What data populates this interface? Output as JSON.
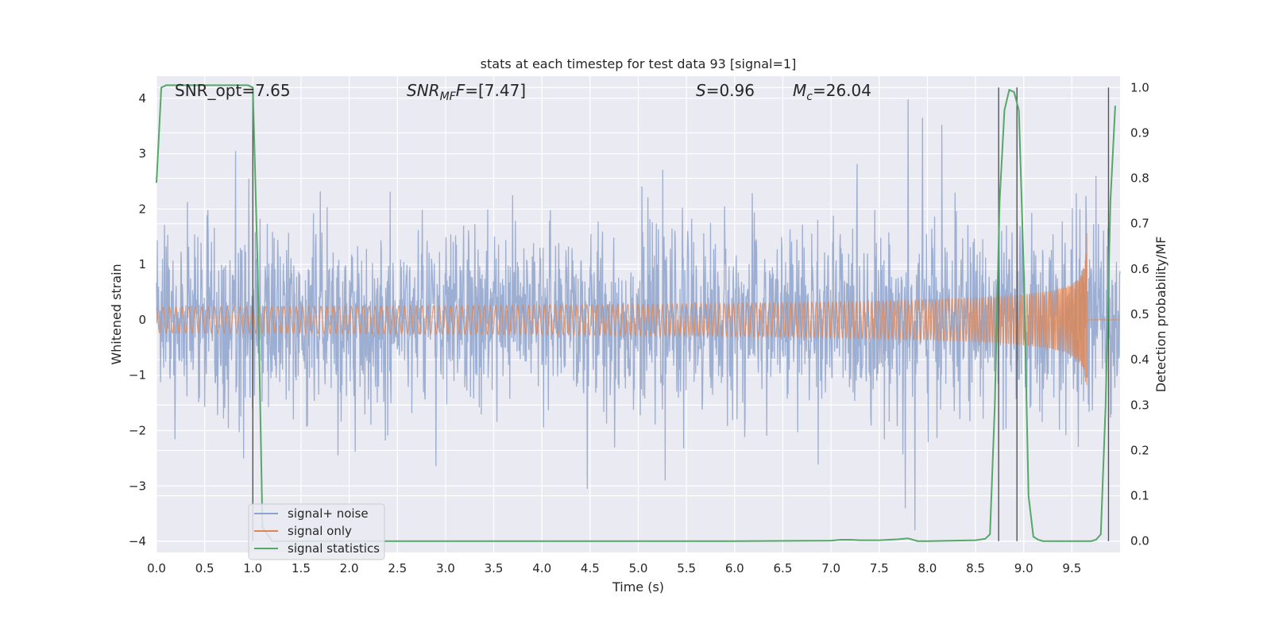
{
  "chart_data": {
    "type": "line",
    "title": "stats at each timestep for test data 93 [signal=1]",
    "xlabel": "Time (s)",
    "ylabel": "Whitened strain",
    "ylabel_right": "Detection probability/MF",
    "xlim": [
      0.0,
      10.0
    ],
    "ylim": [
      -4.2,
      4.4
    ],
    "ylim_right": [
      -0.025,
      1.025
    ],
    "grid": true,
    "legend_position": "lower-left",
    "x_ticks": [
      "0.0",
      "0.5",
      "1.0",
      "1.5",
      "2.0",
      "2.5",
      "3.0",
      "3.5",
      "4.0",
      "4.5",
      "5.0",
      "5.5",
      "6.0",
      "6.5",
      "7.0",
      "7.5",
      "8.0",
      "8.5",
      "9.0",
      "9.5"
    ],
    "y_ticks": [
      "−4",
      "−3",
      "−2",
      "−1",
      "0",
      "1",
      "2",
      "3",
      "4"
    ],
    "y_ticks_right": [
      "0.0",
      "0.1",
      "0.2",
      "0.3",
      "0.4",
      "0.5",
      "0.6",
      "0.7",
      "0.8",
      "0.9",
      "1.0"
    ],
    "annotations": {
      "snr_opt": "SNR_opt=7.65",
      "snr_mf_prefix": "SNR",
      "snr_mf_sub": "MF",
      "snr_mf_value": "=[7.47]",
      "s_symbol": "S",
      "s_value": "=0.96",
      "mc_symbol": "M",
      "mc_sub": "c",
      "mc_value": "=26.04"
    },
    "series": [
      {
        "name": "signal+ noise",
        "axis": "left",
        "color": "#8ea3cc",
        "kind": "whitened noise envelope",
        "peaks": [
          {
            "x": 0.82,
            "y": 3.05
          },
          {
            "x": 0.96,
            "y": 2.55
          },
          {
            "x": 7.8,
            "y": 3.98
          },
          {
            "x": 7.95,
            "y": 3.65
          },
          {
            "x": 8.15,
            "y": 3.52
          },
          {
            "x": 9.75,
            "y": 2.6
          },
          {
            "x": 7.87,
            "y": -3.8
          },
          {
            "x": 7.77,
            "y": -3.4
          },
          {
            "x": 5.28,
            "y": -2.9
          },
          {
            "x": 4.47,
            "y": -3.05
          }
        ]
      },
      {
        "name": "signal only",
        "axis": "left",
        "color": "#dd8452",
        "kind": "inspiral chirp",
        "merger_time": 9.66,
        "peak_amplitude": 1.65
      },
      {
        "name": "signal statistics",
        "axis": "right",
        "color": "#55a868",
        "x": [
          0.0,
          0.05,
          0.1,
          0.2,
          0.4,
          0.6,
          0.8,
          0.95,
          1.0,
          1.05,
          1.1,
          1.2,
          1.5,
          2.0,
          3.0,
          4.0,
          5.0,
          6.0,
          7.0,
          7.1,
          7.2,
          7.3,
          7.5,
          7.7,
          7.8,
          7.9,
          8.0,
          8.5,
          8.6,
          8.65,
          8.7,
          8.75,
          8.8,
          8.85,
          8.9,
          8.95,
          9.0,
          9.05,
          9.1,
          9.15,
          9.2,
          9.3,
          9.5,
          9.7,
          9.75,
          9.8,
          9.85,
          9.9,
          9.95
        ],
        "values": [
          0.79,
          1.0,
          1.005,
          1.005,
          1.005,
          1.005,
          1.005,
          1.005,
          1.0,
          0.6,
          0.03,
          0.0,
          0.0,
          0.0,
          0.0,
          0.0,
          0.0,
          0.0,
          0.001,
          0.003,
          0.003,
          0.002,
          0.002,
          0.004,
          0.006,
          0.0,
          0.0,
          0.002,
          0.005,
          0.015,
          0.3,
          0.75,
          0.95,
          0.995,
          0.99,
          0.95,
          0.6,
          0.1,
          0.01,
          0.003,
          0.0,
          0.0,
          0.0,
          0.0,
          0.003,
          0.015,
          0.3,
          0.75,
          0.96
        ]
      }
    ],
    "detection_markers": [
      {
        "x": 1.0
      },
      {
        "x": 8.74
      },
      {
        "x": 8.93
      },
      {
        "x": 9.88
      }
    ]
  }
}
